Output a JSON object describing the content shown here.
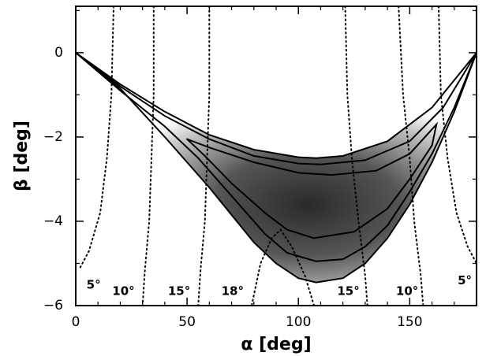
{
  "chart_data": {
    "type": "contour",
    "xlabel": "α [deg]",
    "ylabel": "β [deg]",
    "xlim": [
      0,
      180
    ],
    "ylim": [
      -6,
      1.1
    ],
    "xticks": [
      0,
      50,
      100,
      150
    ],
    "xticks_minor": [
      10,
      20,
      30,
      40,
      60,
      70,
      80,
      90,
      110,
      120,
      130,
      140,
      160,
      170
    ],
    "yticks": [
      {
        "value": 0,
        "label": "0"
      },
      {
        "value": -2,
        "label": "−2"
      },
      {
        "value": -4,
        "label": "−4"
      },
      {
        "value": -6,
        "label": "−6"
      }
    ],
    "yticks_minor": [
      1,
      -1,
      -3,
      -5
    ],
    "series": [
      {
        "style": "solid",
        "color": "#000000",
        "x": [
          0,
          20,
          40,
          60,
          80,
          100,
          108,
          120,
          140,
          160,
          180,
          170,
          160,
          150,
          140,
          130,
          120,
          108,
          100,
          90,
          80,
          60,
          40,
          20,
          0
        ],
        "values": [
          0,
          -0.75,
          -1.4,
          -1.95,
          -2.3,
          -2.48,
          -2.5,
          -2.45,
          -2.1,
          -1.3,
          0,
          -1.4,
          -2.6,
          -3.6,
          -4.4,
          -5.0,
          -5.35,
          -5.45,
          -5.35,
          -5.0,
          -4.5,
          -3.2,
          -2.0,
          -0.85,
          0
        ]
      },
      {
        "style": "solid",
        "color": "#000000",
        "x": [
          0,
          20,
          40,
          60,
          80,
          100,
          110,
          130,
          150,
          165,
          180,
          170,
          160,
          150,
          140,
          130,
          120,
          108,
          95,
          85,
          70,
          55,
          40,
          20,
          0
        ],
        "values": [
          0,
          -0.8,
          -1.5,
          -2.05,
          -2.45,
          -2.63,
          -2.65,
          -2.55,
          -2.1,
          -1.3,
          0,
          -1.3,
          -2.4,
          -3.3,
          -4.1,
          -4.6,
          -4.9,
          -4.95,
          -4.75,
          -4.3,
          -3.4,
          -2.5,
          -1.75,
          -0.9,
          0
        ]
      },
      {
        "style": "solid",
        "color": "#000000",
        "x": [
          50,
          60,
          80,
          100,
          115,
          135,
          150,
          162,
          160,
          150,
          140,
          125,
          107,
          95,
          85,
          70,
          58,
          50
        ],
        "values": [
          -2.05,
          -2.25,
          -2.6,
          -2.85,
          -2.9,
          -2.8,
          -2.4,
          -1.7,
          -2.2,
          -3.0,
          -3.7,
          -4.25,
          -4.4,
          -4.2,
          -3.8,
          -3.1,
          -2.45,
          -2.05
        ]
      },
      {
        "style": "dotted",
        "color": "#000000",
        "label": "5°",
        "x": [
          17,
          16,
          14,
          11,
          6,
          2
        ],
        "values": [
          1.1,
          -1,
          -2.5,
          -3.8,
          -4.7,
          -5.1
        ]
      },
      {
        "style": "dotted",
        "color": "#000000",
        "label": "10°",
        "x": [
          35,
          35,
          34,
          33,
          31,
          30
        ],
        "values": [
          1.1,
          -1,
          -2.5,
          -4,
          -5.2,
          -6
        ]
      },
      {
        "style": "dotted",
        "color": "#000000",
        "label": "15°",
        "x": [
          60,
          60,
          59,
          58,
          56,
          55
        ],
        "values": [
          1.1,
          -1,
          -2.5,
          -4,
          -5.2,
          -6
        ]
      },
      {
        "style": "dotted",
        "color": "#000000",
        "label": "18°",
        "x": [
          107,
          103,
          97,
          92,
          88,
          83,
          79
        ],
        "values": [
          -6,
          -5.3,
          -4.6,
          -4.2,
          -4.4,
          -5,
          -6
        ]
      },
      {
        "style": "dotted",
        "color": "#000000",
        "label": "15°",
        "x": [
          121,
          122,
          124,
          127,
          130,
          131
        ],
        "values": [
          1.1,
          -1,
          -2.5,
          -4,
          -5.3,
          -6
        ]
      },
      {
        "style": "dotted",
        "color": "#000000",
        "label": "10°",
        "x": [
          145,
          147,
          150,
          152,
          155,
          156
        ],
        "values": [
          1.1,
          -1,
          -2.5,
          -4,
          -5.3,
          -6
        ]
      },
      {
        "style": "dotted",
        "color": "#000000",
        "label": "5°",
        "x": [
          163,
          164,
          167,
          171,
          176,
          180
        ],
        "values": [
          1.1,
          -1,
          -2.5,
          -3.8,
          -4.6,
          -5
        ]
      }
    ]
  }
}
